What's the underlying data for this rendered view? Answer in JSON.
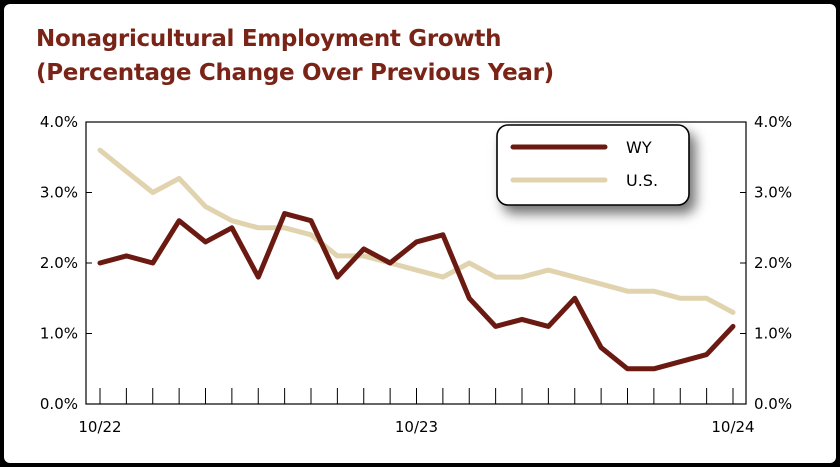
{
  "title_line1": "Nonagricultural Employment Growth",
  "title_line2": "(Percentage Change Over Previous Year)",
  "colors": {
    "wy": "#6b1a12",
    "us": "#e0d3ad",
    "title": "#7a2418"
  },
  "chart_data": {
    "type": "line",
    "title": "Nonagricultural Employment Growth (Percentage Change Over Previous Year)",
    "x": [
      "10/22",
      "11/22",
      "12/22",
      "1/23",
      "2/23",
      "3/23",
      "4/23",
      "5/23",
      "6/23",
      "7/23",
      "8/23",
      "9/23",
      "10/23",
      "11/23",
      "12/23",
      "1/24",
      "2/24",
      "3/24",
      "4/24",
      "5/24",
      "6/24",
      "7/24",
      "8/24",
      "9/24",
      "10/24"
    ],
    "x_tick_labels": [
      "10/22",
      "10/23",
      "10/24"
    ],
    "y_tick_labels": [
      "0.0%",
      "1.0%",
      "2.0%",
      "3.0%",
      "4.0%"
    ],
    "ylim": [
      0,
      4
    ],
    "grid": false,
    "legend_position": "top-right",
    "series": [
      {
        "name": "WY",
        "values": [
          2.0,
          2.1,
          2.0,
          2.6,
          2.3,
          2.5,
          1.8,
          2.7,
          2.6,
          1.8,
          2.2,
          2.0,
          2.3,
          2.4,
          1.5,
          1.1,
          1.2,
          1.1,
          1.5,
          0.8,
          0.5,
          0.5,
          0.6,
          0.7,
          1.1
        ]
      },
      {
        "name": "U.S.",
        "values": [
          3.6,
          3.3,
          3.0,
          3.2,
          2.8,
          2.6,
          2.5,
          2.5,
          2.4,
          2.1,
          2.1,
          2.0,
          1.9,
          1.8,
          2.0,
          1.8,
          1.8,
          1.9,
          1.8,
          1.7,
          1.6,
          1.6,
          1.5,
          1.5,
          1.3
        ]
      }
    ]
  }
}
